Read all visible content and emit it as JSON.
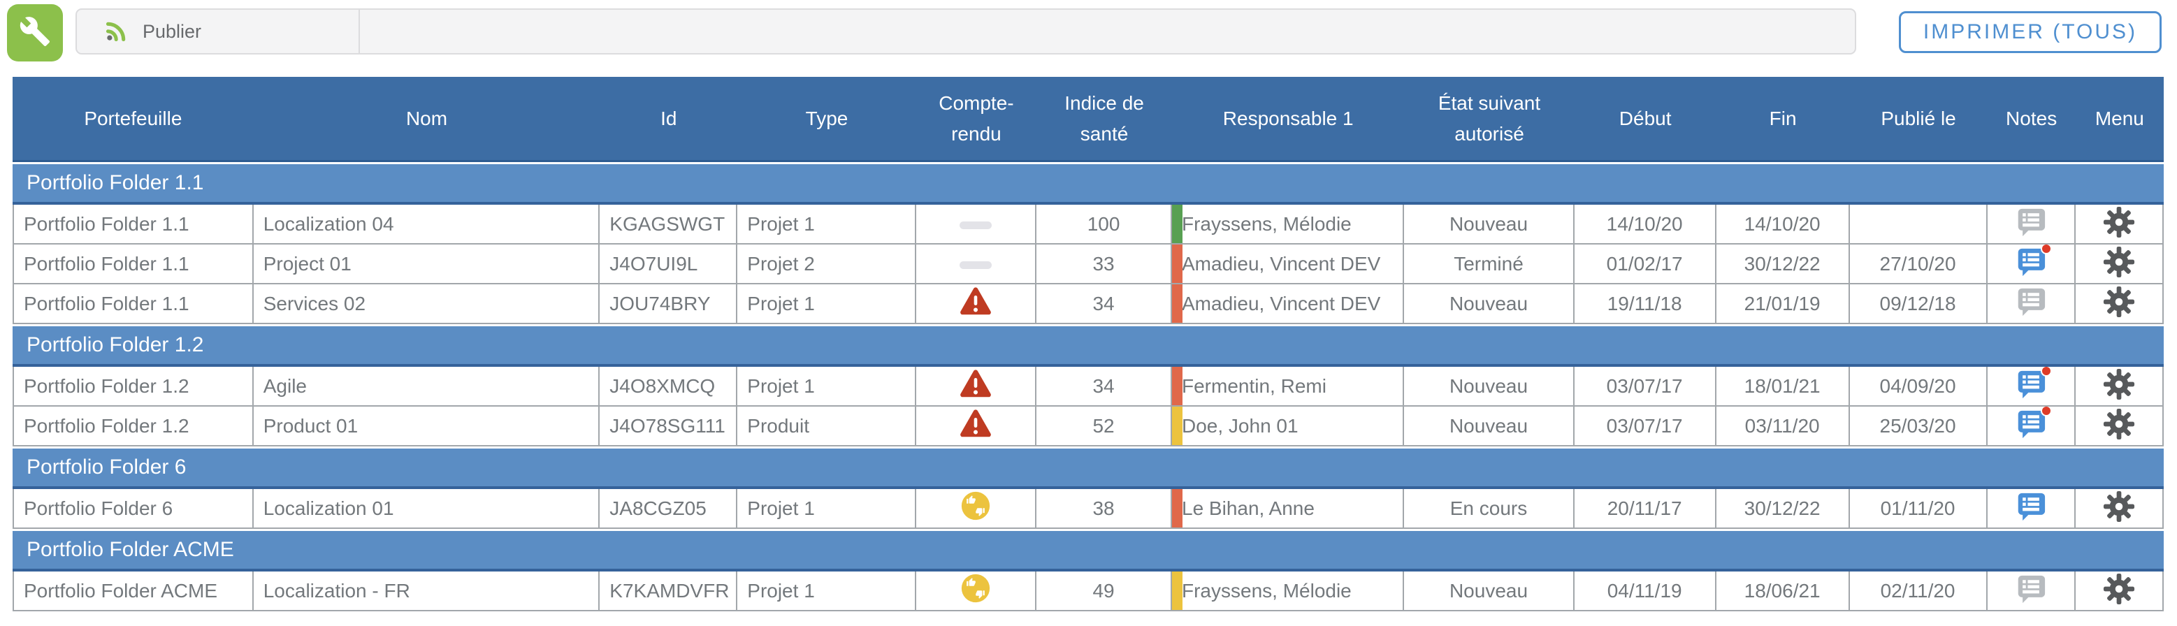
{
  "toolbar": {
    "publier_label": "Publier",
    "imprimer_label": "IMPRIMER (TOUS)"
  },
  "colors": {
    "header_bg": "#3d6da4",
    "group_bg": "#5b8dc4",
    "accent_blue": "#4f8fd0",
    "toolbar_green": "#8cc04b",
    "alert_red": "#bf3b22",
    "mixed_yellow": "#ecc33e",
    "notes_gray": "#b7bbbf",
    "notes_blue": "#4a90d9",
    "dot_red": "#de3b28",
    "gear_gray": "#57595b",
    "health": {
      "green": "#58a052",
      "red": "#e0684a",
      "yellow": "#ecc33e"
    }
  },
  "table": {
    "columns": [
      {
        "id": "portefeuille",
        "label": "Portefeuille",
        "align": "left",
        "width": "11.2%"
      },
      {
        "id": "nom",
        "label": "Nom",
        "align": "left",
        "width": "16.1%"
      },
      {
        "id": "id",
        "label": "Id",
        "align": "left",
        "width": "6.4%"
      },
      {
        "id": "type",
        "label": "Type",
        "align": "left",
        "width": "8.3%"
      },
      {
        "id": "compte_rendu",
        "label": "Compte-rendu",
        "align": "center",
        "width": "5.6%"
      },
      {
        "id": "indice",
        "label": "Indice de santé",
        "align": "center",
        "width": "6.3%"
      },
      {
        "id": "responsable",
        "label": "Responsable 1",
        "align": "left",
        "width": "10.8%"
      },
      {
        "id": "etat",
        "label": "État suivant autorisé",
        "align": "center",
        "width": "7.9%"
      },
      {
        "id": "debut",
        "label": "Début",
        "align": "center",
        "width": "6.6%"
      },
      {
        "id": "fin",
        "label": "Fin",
        "align": "center",
        "width": "6.2%"
      },
      {
        "id": "publie",
        "label": "Publié le",
        "align": "center",
        "width": "6.4%"
      },
      {
        "id": "notes",
        "label": "Notes",
        "align": "center",
        "width": "4.1%"
      },
      {
        "id": "menu",
        "label": "Menu",
        "align": "center",
        "width": "4.1%"
      }
    ],
    "groups": [
      {
        "label": "Portfolio Folder 1.1",
        "rows": [
          {
            "portefeuille": "Portfolio Folder 1.1",
            "nom": "Localization 04",
            "id": "KGAGSWGT",
            "type": "Projet 1",
            "compte_rendu": "dash",
            "indice": "100",
            "indice_color": "green",
            "responsable": "Frayssens, Mélodie",
            "etat": "Nouveau",
            "debut": "14/10/20",
            "fin": "14/10/20",
            "publie": "",
            "notes_style": "gray",
            "notes_dot": false
          },
          {
            "portefeuille": "Portfolio Folder 1.1",
            "nom": "Project 01",
            "id": "J4O7UI9L",
            "type": "Projet 2",
            "compte_rendu": "dash",
            "indice": "33",
            "indice_color": "red",
            "responsable": "Amadieu, Vincent DEV",
            "etat": "Terminé",
            "debut": "01/02/17",
            "fin": "30/12/22",
            "publie": "27/10/20",
            "notes_style": "blue",
            "notes_dot": true
          },
          {
            "portefeuille": "Portfolio Folder 1.1",
            "nom": "Services 02",
            "id": "JOU74BRY",
            "type": "Projet 1",
            "compte_rendu": "alert",
            "indice": "34",
            "indice_color": "red",
            "responsable": "Amadieu, Vincent DEV",
            "etat": "Nouveau",
            "debut": "19/11/18",
            "fin": "21/01/19",
            "publie": "09/12/18",
            "notes_style": "gray",
            "notes_dot": false
          }
        ]
      },
      {
        "label": "Portfolio Folder 1.2",
        "rows": [
          {
            "portefeuille": "Portfolio Folder 1.2",
            "nom": "Agile",
            "id": "J4O8XMCQ",
            "type": "Projet 1",
            "compte_rendu": "alert",
            "indice": "34",
            "indice_color": "red",
            "responsable": "Fermentin, Remi",
            "etat": "Nouveau",
            "debut": "03/07/17",
            "fin": "18/01/21",
            "publie": "04/09/20",
            "notes_style": "blue",
            "notes_dot": true
          },
          {
            "portefeuille": "Portfolio Folder 1.2",
            "nom": "Product 01",
            "id": "J4O78SG111",
            "type": "Produit",
            "compte_rendu": "alert",
            "indice": "52",
            "indice_color": "yellow",
            "responsable": "Doe, John 01",
            "etat": "Nouveau",
            "debut": "03/07/17",
            "fin": "03/11/20",
            "publie": "25/03/20",
            "notes_style": "blue",
            "notes_dot": true
          }
        ]
      },
      {
        "label": "Portfolio Folder 6",
        "rows": [
          {
            "portefeuille": "Portfolio Folder 6",
            "nom": "Localization 01",
            "id": "JA8CGZ05",
            "type": "Projet 1",
            "compte_rendu": "mixed",
            "indice": "38",
            "indice_color": "red",
            "responsable": "Le Bihan, Anne",
            "etat": "En cours",
            "debut": "20/11/17",
            "fin": "30/12/22",
            "publie": "01/11/20",
            "notes_style": "blue",
            "notes_dot": false
          }
        ]
      },
      {
        "label": "Portfolio Folder ACME",
        "rows": [
          {
            "portefeuille": "Portfolio Folder ACME",
            "nom": "Localization - FR",
            "id": "K7KAMDVFR",
            "type": "Projet 1",
            "compte_rendu": "mixed",
            "indice": "49",
            "indice_color": "yellow",
            "responsable": "Frayssens, Mélodie",
            "etat": "Nouveau",
            "debut": "04/11/19",
            "fin": "18/06/21",
            "publie": "02/11/20",
            "notes_style": "gray",
            "notes_dot": false
          }
        ]
      }
    ]
  }
}
